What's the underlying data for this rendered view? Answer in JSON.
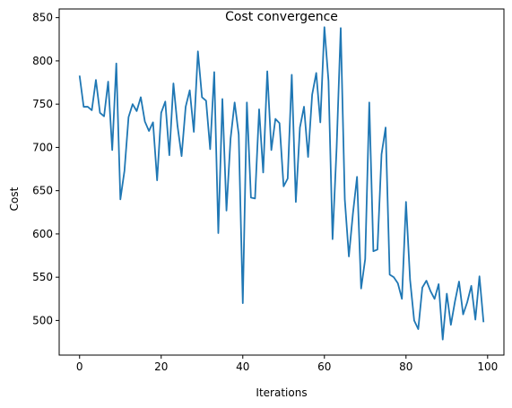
{
  "chart_data": {
    "type": "line",
    "title": "Cost convergence",
    "xlabel": "Iterations",
    "ylabel": "Cost",
    "xlim": [
      -5,
      104
    ],
    "ylim": [
      460,
      860
    ],
    "xticks": [
      0,
      20,
      40,
      60,
      80,
      100
    ],
    "yticks": [
      500,
      550,
      600,
      650,
      700,
      750,
      800,
      850
    ],
    "grid": false,
    "line_color": "#1f77b4",
    "series": [
      {
        "x": [
          0,
          1,
          2,
          3,
          4,
          5,
          6,
          7,
          8,
          9,
          10,
          11,
          12,
          13,
          14,
          15,
          16,
          17,
          18,
          19,
          20,
          21,
          22,
          23,
          24,
          25,
          26,
          27,
          28,
          29,
          30,
          31,
          32,
          33,
          34,
          35,
          36,
          37,
          38,
          39,
          40,
          41,
          42,
          43,
          44,
          45,
          46,
          47,
          48,
          49,
          50,
          51,
          52,
          53,
          54,
          55,
          56,
          57,
          58,
          59,
          60,
          61,
          62,
          63,
          64,
          65,
          66,
          67,
          68,
          69,
          70,
          71,
          72,
          73,
          74,
          75,
          76,
          77,
          78,
          79,
          80,
          81,
          82,
          83,
          84,
          85,
          86,
          87,
          88,
          89,
          90,
          91,
          92,
          93,
          94,
          95,
          96,
          97,
          98,
          99
        ],
        "values": [
          783,
          747,
          747,
          743,
          778,
          740,
          736,
          776,
          697,
          797,
          640,
          673,
          735,
          750,
          742,
          758,
          730,
          719,
          729,
          662,
          740,
          753,
          691,
          774,
          725,
          690,
          747,
          766,
          718,
          811,
          758,
          754,
          698,
          787,
          601,
          756,
          627,
          710,
          752,
          715,
          520,
          752,
          642,
          641,
          744,
          671,
          788,
          697,
          733,
          728,
          655,
          664,
          784,
          637,
          723,
          747,
          689,
          761,
          786,
          729,
          839,
          777,
          594,
          700,
          838,
          640,
          574,
          624,
          666,
          537,
          571,
          752,
          580,
          582,
          692,
          723,
          553,
          550,
          543,
          525,
          637,
          547,
          500,
          490,
          538,
          546,
          534,
          525,
          542,
          478,
          531,
          495,
          522,
          545,
          507,
          521,
          540,
          501,
          551,
          498
        ]
      }
    ]
  }
}
